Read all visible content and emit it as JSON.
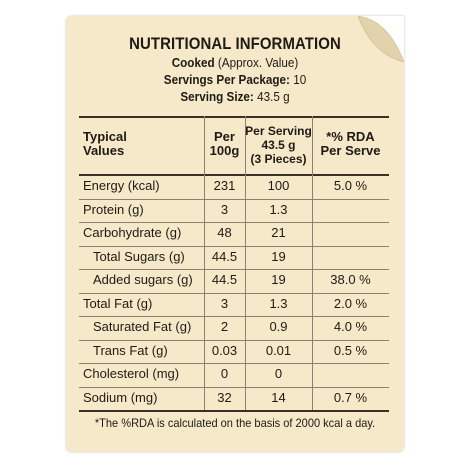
{
  "header": {
    "title": "NUTRITIONAL INFORMATION",
    "cooked_label": "Cooked",
    "cooked_note": "(Approx. Value)",
    "servings_label": "Servings Per Package:",
    "servings_value": "10",
    "serving_size_label": "Serving Size:",
    "serving_size_value": "43.5 g"
  },
  "columns": {
    "typical_line1": "Typical",
    "typical_line2": "Values",
    "per100_line1": "Per",
    "per100_line2": "100g",
    "perserving_line1": "Per Serving",
    "perserving_line2": "43.5 g",
    "perserving_line3": "(3 Pieces)",
    "rda_line1": "*% RDA",
    "rda_line2": "Per Serve"
  },
  "rows": [
    {
      "label": "Energy (kcal)",
      "per100": "231",
      "serving": "100",
      "rda": "5.0 %",
      "indent": false
    },
    {
      "label": "Protein (g)",
      "per100": "3",
      "serving": "1.3",
      "rda": "",
      "indent": false
    },
    {
      "label": "Carbohydrate (g)",
      "per100": "48",
      "serving": "21",
      "rda": "",
      "indent": false
    },
    {
      "label": "Total Sugars (g)",
      "per100": "44.5",
      "serving": "19",
      "rda": "",
      "indent": true
    },
    {
      "label": "Added sugars (g)",
      "per100": "44.5",
      "serving": "19",
      "rda": "38.0 %",
      "indent": true
    },
    {
      "label": "Total Fat (g)",
      "per100": "3",
      "serving": "1.3",
      "rda": "2.0 %",
      "indent": false
    },
    {
      "label": "Saturated Fat (g)",
      "per100": "2",
      "serving": "0.9",
      "rda": "4.0 %",
      "indent": true
    },
    {
      "label": "Trans Fat (g)",
      "per100": "0.03",
      "serving": "0.01",
      "rda": "0.5 %",
      "indent": true
    },
    {
      "label": "Cholesterol (mg)",
      "per100": "0",
      "serving": "0",
      "rda": "",
      "indent": false
    },
    {
      "label": "Sodium (mg)",
      "per100": "32",
      "serving": "14",
      "rda": "0.7 %",
      "indent": false
    }
  ],
  "footnote": "*The %RDA is calculated on the basis of 2000 kcal a day.",
  "colors": {
    "panel": "#f6e9c9",
    "curl": "#e2d3ac",
    "ink": "#1f1a14"
  }
}
